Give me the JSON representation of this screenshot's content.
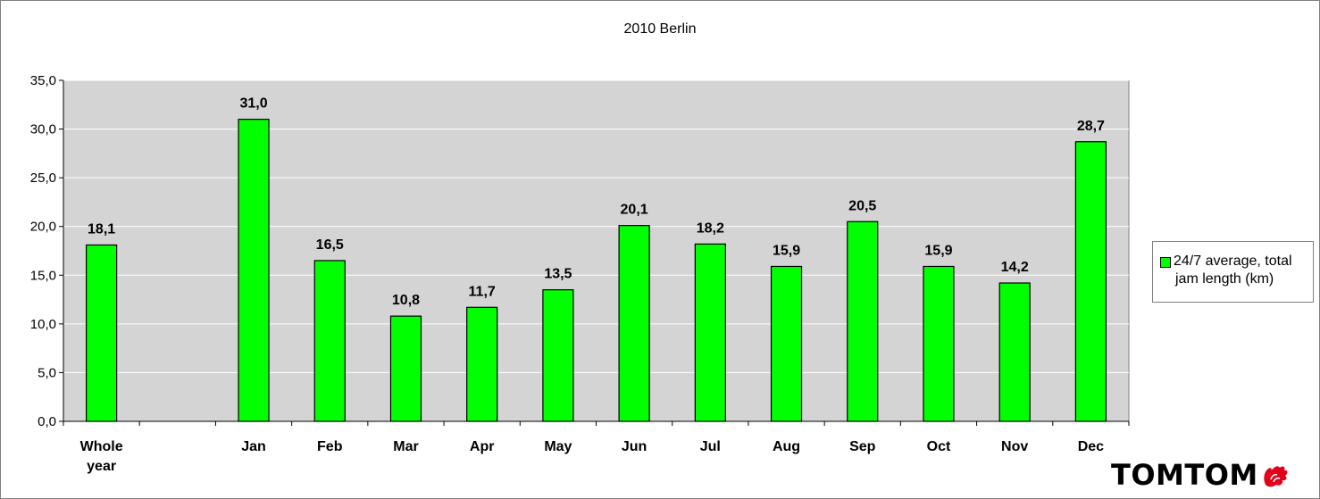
{
  "chart_data": {
    "type": "bar",
    "title": "2010 Berlin",
    "categories": [
      "Whole year",
      "",
      "Jan",
      "Feb",
      "Mar",
      "Apr",
      "May",
      "Jun",
      "Jul",
      "Aug",
      "Sep",
      "Oct",
      "Nov",
      "Dec"
    ],
    "category_lines": [
      [
        "Whole",
        "year"
      ],
      [],
      [
        "Jan"
      ],
      [
        "Feb"
      ],
      [
        "Mar"
      ],
      [
        "Apr"
      ],
      [
        "May"
      ],
      [
        "Jun"
      ],
      [
        "Jul"
      ],
      [
        "Aug"
      ],
      [
        "Sep"
      ],
      [
        "Oct"
      ],
      [
        "Nov"
      ],
      [
        "Dec"
      ]
    ],
    "series": [
      {
        "name": "24/7 average, total jam length (km)",
        "values": [
          18.1,
          null,
          31.0,
          16.5,
          10.8,
          11.7,
          13.5,
          20.1,
          18.2,
          15.9,
          20.5,
          15.9,
          14.2,
          28.7
        ],
        "labels": [
          "18,1",
          "",
          "31,0",
          "16,5",
          "10,8",
          "11,7",
          "13,5",
          "20,1",
          "18,2",
          "15,9",
          "20,5",
          "15,9",
          "14,2",
          "28,7"
        ],
        "color": "#00ff00"
      }
    ],
    "ylim": [
      0,
      35
    ],
    "yticks": [
      0,
      5,
      10,
      15,
      20,
      25,
      30,
      35
    ],
    "ytick_labels": [
      "0,0",
      "5,0",
      "10,0",
      "15,0",
      "20,0",
      "25,0",
      "30,0",
      "35,0"
    ],
    "xlabel": "",
    "ylabel": "",
    "grid": true,
    "legend_position": "right",
    "plot_background": "#d4d4d4"
  },
  "legend": {
    "lines": [
      "24/7 average, total",
      "jam length (km)"
    ],
    "swatch_color": "#00ff00"
  },
  "logo": {
    "text": "TOMTOM",
    "icon": "tomtom-hands-icon"
  }
}
